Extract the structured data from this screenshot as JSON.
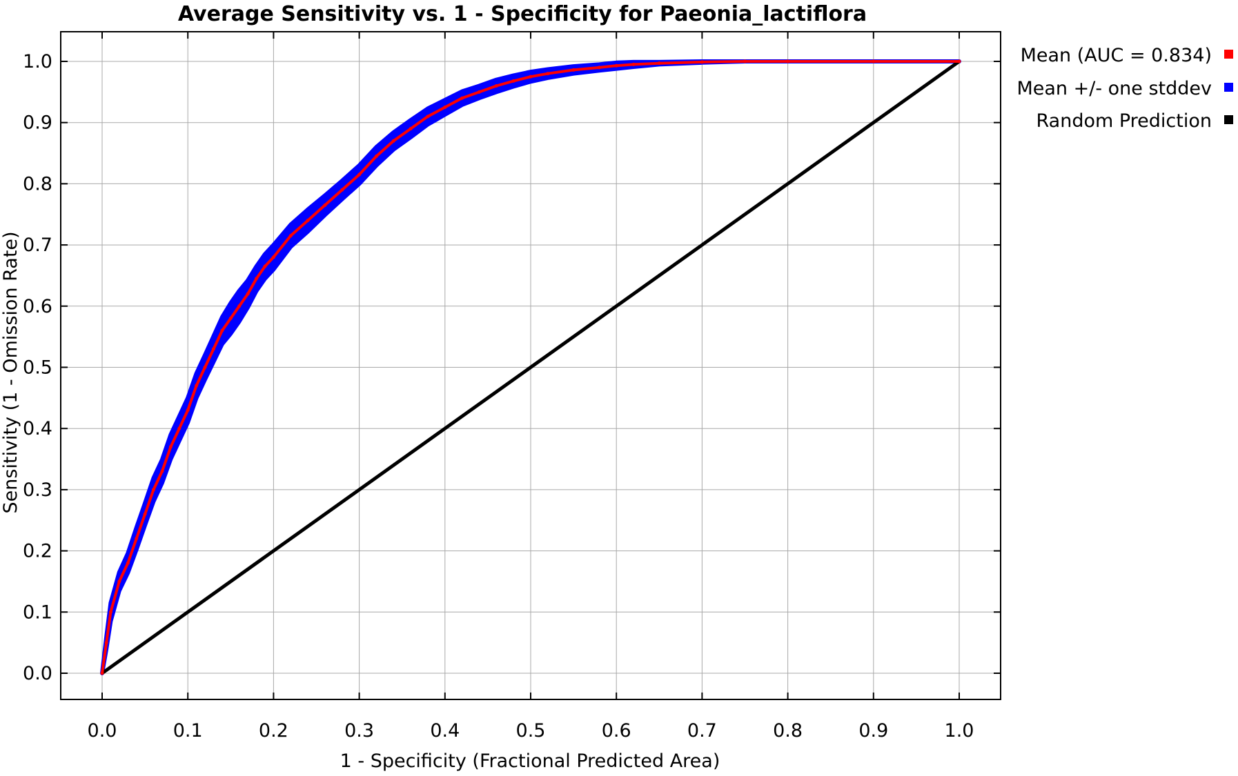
{
  "chart_data": {
    "type": "line",
    "title": "Average Sensitivity vs. 1 - Specificity for Paeonia_lactiflora",
    "xlabel": "1 - Specificity (Fractional Predicted Area)",
    "ylabel": "Sensitivity (1 - Omission Rate)",
    "xlim": [
      0,
      1
    ],
    "ylim": [
      0,
      1
    ],
    "x_ticks": [
      "0.0",
      "0.1",
      "0.2",
      "0.3",
      "0.4",
      "0.5",
      "0.6",
      "0.7",
      "0.8",
      "0.9",
      "1.0"
    ],
    "y_ticks": [
      "0.0",
      "0.1",
      "0.2",
      "0.3",
      "0.4",
      "0.5",
      "0.6",
      "0.7",
      "0.8",
      "0.9",
      "1.0"
    ],
    "grid": true,
    "legend_position": "right-top",
    "series": [
      {
        "name": "Mean (AUC = 0.834)",
        "color": "#ff0000",
        "x": [
          0,
          0.005,
          0.01,
          0.02,
          0.03,
          0.04,
          0.05,
          0.06,
          0.07,
          0.08,
          0.09,
          0.1,
          0.11,
          0.12,
          0.13,
          0.14,
          0.15,
          0.16,
          0.17,
          0.18,
          0.19,
          0.2,
          0.22,
          0.24,
          0.26,
          0.28,
          0.3,
          0.32,
          0.34,
          0.36,
          0.38,
          0.4,
          0.42,
          0.44,
          0.46,
          0.48,
          0.5,
          0.52,
          0.55,
          0.58,
          0.6,
          0.62,
          0.65,
          0.7,
          0.75,
          0.8,
          0.9,
          1.0
        ],
        "y": [
          0,
          0.05,
          0.1,
          0.15,
          0.18,
          0.22,
          0.26,
          0.3,
          0.33,
          0.37,
          0.4,
          0.43,
          0.47,
          0.5,
          0.53,
          0.56,
          0.58,
          0.6,
          0.62,
          0.645,
          0.665,
          0.68,
          0.715,
          0.74,
          0.765,
          0.79,
          0.815,
          0.845,
          0.87,
          0.89,
          0.91,
          0.925,
          0.94,
          0.95,
          0.96,
          0.968,
          0.975,
          0.98,
          0.986,
          0.99,
          0.993,
          0.995,
          0.997,
          0.999,
          1.0,
          1.0,
          1.0,
          1.0
        ]
      },
      {
        "name": "Mean +/- one stddev",
        "color": "#0000ff",
        "stddev": [
          0,
          0.01,
          0.015,
          0.015,
          0.016,
          0.018,
          0.018,
          0.019,
          0.019,
          0.02,
          0.02,
          0.02,
          0.02,
          0.02,
          0.021,
          0.022,
          0.025,
          0.025,
          0.022,
          0.02,
          0.02,
          0.02,
          0.018,
          0.018,
          0.016,
          0.015,
          0.015,
          0.015,
          0.014,
          0.014,
          0.013,
          0.012,
          0.011,
          0.01,
          0.01,
          0.009,
          0.008,
          0.007,
          0.006,
          0.005,
          0.005,
          0.004,
          0.002,
          0.001,
          0,
          0,
          0,
          0
        ]
      },
      {
        "name": "Random Prediction",
        "color": "#000000",
        "x": [
          0,
          1
        ],
        "y": [
          0,
          1
        ]
      }
    ]
  }
}
